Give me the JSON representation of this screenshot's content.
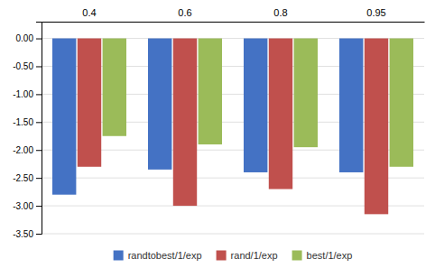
{
  "chart_data": {
    "type": "bar",
    "categories": [
      "0.4",
      "0.6",
      "0.8",
      "0.95"
    ],
    "series": [
      {
        "name": "randtobest/1/exp",
        "color": "#4472C4",
        "values": [
          -2.8,
          -2.35,
          -2.4,
          -2.4
        ]
      },
      {
        "name": "rand/1/exp",
        "color": "#C0504D",
        "values": [
          -2.3,
          -3.0,
          -2.7,
          -3.15
        ]
      },
      {
        "name": "best/1/exp",
        "color": "#9BBB59",
        "values": [
          -1.75,
          -1.9,
          -1.95,
          -2.3
        ]
      }
    ],
    "ylim": [
      -3.5,
      0.3
    ],
    "yticks": [
      {
        "value": 0.0,
        "label": "0.00"
      },
      {
        "value": -0.5,
        "label": "-0.50"
      },
      {
        "value": -1.0,
        "label": "-1.00"
      },
      {
        "value": -1.5,
        "label": "-1.50"
      },
      {
        "value": -2.0,
        "label": "-2.00"
      },
      {
        "value": -2.5,
        "label": "-2.50"
      },
      {
        "value": -3.0,
        "label": "-3.00"
      },
      {
        "value": -3.5,
        "label": "-3.50"
      }
    ],
    "grid": true,
    "legend": "bottom"
  }
}
